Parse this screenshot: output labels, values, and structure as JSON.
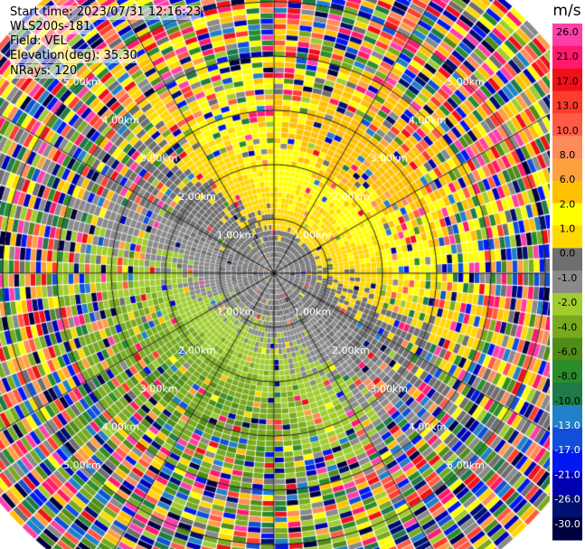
{
  "info": {
    "start_time": "Start time: 2023/07/31 12:16:23",
    "instrument": "WLS200s-181",
    "field": "Field: VEL",
    "elevation": "Elevation(deg): 35.30",
    "nrays": "NRays: 120"
  },
  "chart_data": {
    "type": "heatmap",
    "subtype": "polar-ppi",
    "field": "VEL",
    "units": "m/s",
    "range_ring_labels": [
      "1.00km",
      "2.00km",
      "3.00km",
      "4.00km",
      "5.00km"
    ],
    "range_ring_km": [
      1,
      2,
      3,
      4,
      5
    ],
    "max_range_km": 6.6,
    "n_rays": 120,
    "colorbar": {
      "label": "m/s",
      "ticks": [
        "26.0",
        "21.0",
        "17.0",
        "13.0",
        "10.0",
        "8.0",
        "6.0",
        "2.0",
        "1.0",
        "0.0",
        "-1.0",
        "-2.0",
        "-4.0",
        "-6.0",
        "-8.0",
        "-10.0",
        "-13.0",
        "-17.0",
        "-21.0",
        "-26.0",
        "-30.0"
      ],
      "colors": [
        "#ff3fa8",
        "#ff1a6e",
        "#f01018",
        "#ff3c2c",
        "#ff5a46",
        "#ff8a5a",
        "#ffa040",
        "#ffc000",
        "#ffff00",
        "#ffd800",
        "#6e6e6e",
        "#8a8a8a",
        "#a0cc30",
        "#78aa20",
        "#508c18",
        "#2a8c2a",
        "#1e7a46",
        "#2080c8",
        "#1050d8",
        "#0018f0",
        "#0000b0",
        "#001070",
        "#000040"
      ]
    },
    "wind_pattern": {
      "near_mean_ms": 0,
      "max_abs_ms": 8,
      "positive_bearing_deg": 35,
      "negative_bearing_deg": 215
    }
  }
}
